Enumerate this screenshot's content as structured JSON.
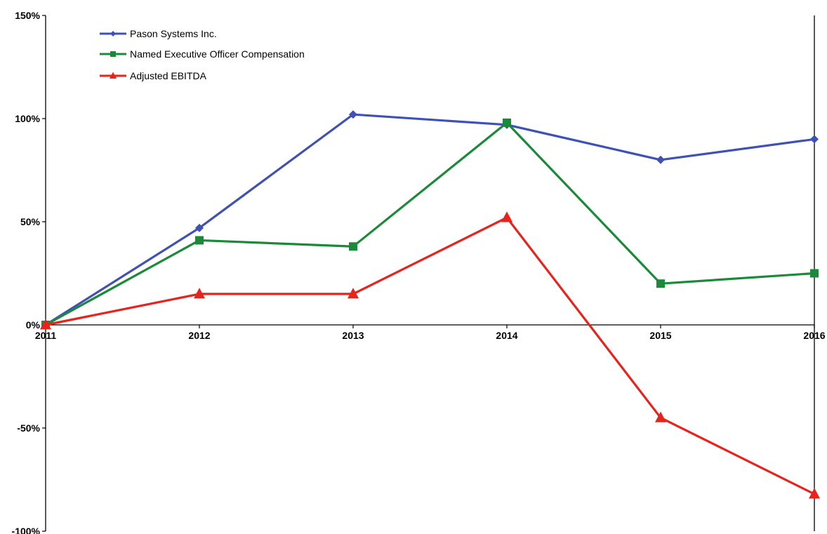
{
  "chart_data": {
    "type": "line",
    "title": "",
    "xlabel": "",
    "ylabel": "",
    "categories": [
      "2011",
      "2012",
      "2013",
      "2014",
      "2015",
      "2016"
    ],
    "ylim": [
      -100,
      150
    ],
    "y_ticks": [
      150,
      100,
      50,
      0,
      -50,
      -100
    ],
    "y_tick_labels": [
      "150%",
      "100%",
      "50%",
      "0%",
      "-50%",
      "-100%"
    ],
    "grid": false,
    "legend_position": "top-left",
    "series": [
      {
        "name": "Pason Systems Inc.",
        "values": [
          0,
          47,
          102,
          97,
          80,
          90
        ],
        "color": "#3f51b5",
        "marker": "diamond"
      },
      {
        "name": "Named Executive Officer Compensation",
        "values": [
          0,
          41,
          38,
          98,
          20,
          25
        ],
        "color": "#1a8a3a",
        "marker": "square"
      },
      {
        "name": "Adjusted EBITDA",
        "values": [
          0,
          15,
          15,
          52,
          -45,
          -82
        ],
        "color": "#e8231c",
        "marker": "triangle"
      }
    ]
  }
}
